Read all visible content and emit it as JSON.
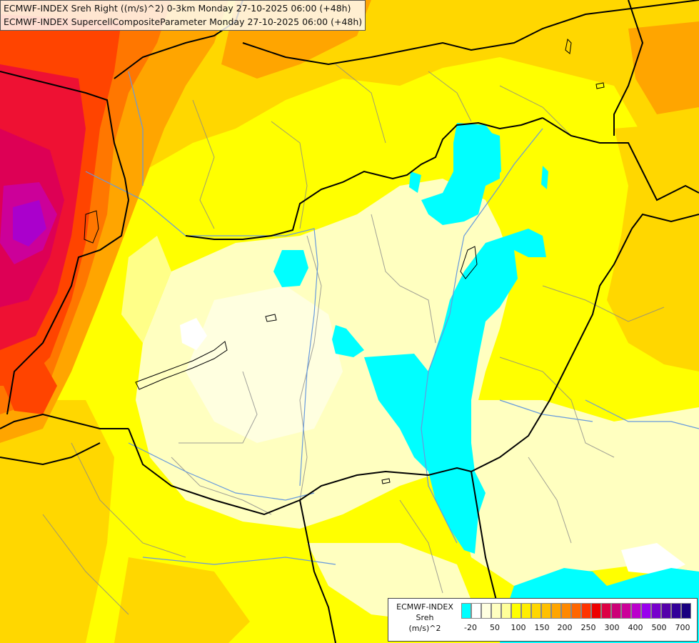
{
  "titles": {
    "line1": "ECMWF-INDEX Sreh Right ((m/s)^2) 0-3km Monday 27-10-2025 06:00 (+48h)",
    "line2": "ECMWF-INDEX SupercellCompositeParameter Monday 27-10-2025 06:00 (+48h)"
  },
  "legend": {
    "line1": "ECMWF-INDEX",
    "line2": "Sreh",
    "line3": "(m/s)^2",
    "colors": [
      "#00ffff",
      "#ffffff",
      "#ffffe0",
      "#ffffc0",
      "#ffff99",
      "#ffff00",
      "#ffee00",
      "#ffd700",
      "#ffc000",
      "#ffa500",
      "#ff8800",
      "#ff6600",
      "#ff3300",
      "#ee0000",
      "#dd0044",
      "#cc0077",
      "#cc0099",
      "#bb00cc",
      "#9900ee",
      "#7700cc",
      "#5500aa",
      "#330099",
      "#1a0080"
    ],
    "tick_labels": [
      "-20",
      "50",
      "100",
      "150",
      "200",
      "250",
      "300",
      "400",
      "500",
      "700"
    ]
  },
  "map_colors": {
    "yellow": "#ffff00",
    "gold": "#ffd700",
    "orange": "#ffa500",
    "dark_orange": "#ff7700",
    "red_orange": "#ff4400",
    "red": "#ee1133",
    "crimson": "#dd0055",
    "magenta": "#cc0099",
    "purple": "#aa00cc",
    "pale_yellow": "#ffffc0",
    "light_yellow": "#ffff88",
    "cream": "#ffffe0",
    "white": "#ffffff",
    "cyan": "#00ffff",
    "border": "#000000",
    "river": "#6699dd",
    "region": "#888888"
  }
}
